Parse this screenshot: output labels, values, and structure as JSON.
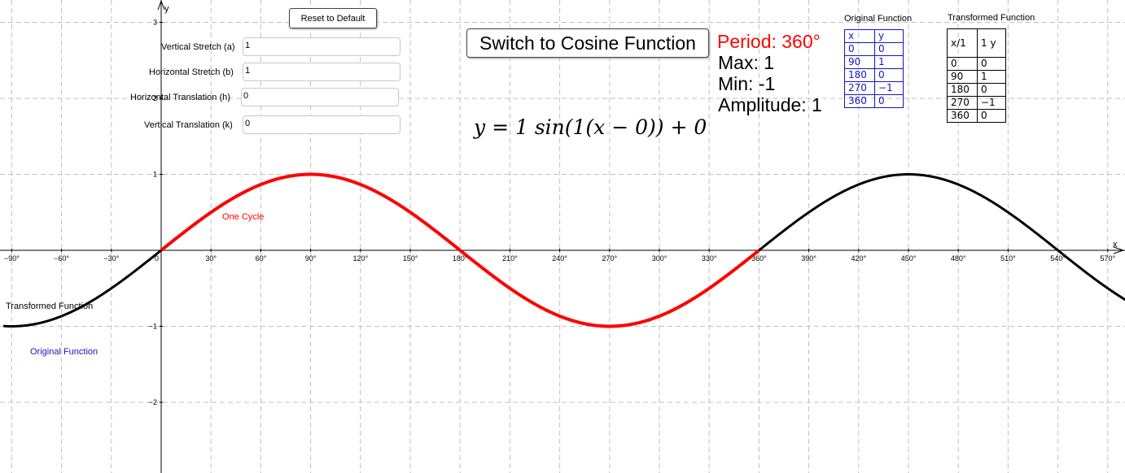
{
  "controls": {
    "reset_label": "Reset to Default",
    "switch_label": "Switch to Cosine Function",
    "sliders": [
      {
        "label": "Vertical Stretch (a)",
        "value": "1"
      },
      {
        "label": "Horizontal Stretch (b)",
        "value": "1"
      },
      {
        "label": "Horizontal Translation (h)",
        "value": "0"
      },
      {
        "label": "Vertical Translation (k)",
        "value": "0"
      }
    ]
  },
  "info": {
    "period": "Period: 360°",
    "max": "Max: 1",
    "min": "Min: -1",
    "amplitude": "Amplitude: 1",
    "equation": "y = 1 sin(1(x − 0)) + 0"
  },
  "tables": {
    "original": {
      "title": "Original Function",
      "headers": [
        "x",
        "y"
      ],
      "rows": [
        [
          "0",
          "0"
        ],
        [
          "90",
          "1"
        ],
        [
          "180",
          "0"
        ],
        [
          "270",
          "−1"
        ],
        [
          "360",
          "0"
        ]
      ]
    },
    "transformed": {
      "title": "Transformed Function",
      "headers": [
        "x/1",
        "1 y"
      ],
      "rows": [
        [
          "0",
          "0"
        ],
        [
          "90",
          "1"
        ],
        [
          "180",
          "0"
        ],
        [
          "270",
          "−1"
        ],
        [
          "360",
          "0"
        ]
      ]
    }
  },
  "labels": {
    "one_cycle": "One Cycle",
    "transformed": "Transformed Function",
    "original": "Original Function"
  },
  "colors": {
    "cycle": "#ff0000",
    "transformed": "#000000",
    "original": "#1515c0",
    "grid": "#c0c0c0"
  },
  "chart_data": {
    "type": "line",
    "xlabel": "x",
    "ylabel": "y",
    "xlim": [
      -95,
      582
    ],
    "ylim": [
      -2.9,
      3.2
    ],
    "x_ticks": [
      -90,
      -60,
      -30,
      0,
      30,
      60,
      90,
      120,
      150,
      180,
      210,
      240,
      270,
      300,
      330,
      360,
      390,
      420,
      450,
      480,
      510,
      540,
      570
    ],
    "x_tick_labels": [
      "−90°",
      "−60°",
      "−30°",
      "0",
      "30°",
      "60°",
      "90°",
      "120°",
      "150°",
      "180°",
      "210°",
      "240°",
      "270°",
      "300°",
      "330°",
      "360°",
      "390°",
      "420°",
      "450°",
      "480°",
      "510°",
      "540°",
      "570°"
    ],
    "y_ticks": [
      -2,
      -1,
      1,
      2,
      3
    ],
    "y_tick_labels": [
      "−2",
      "−1",
      "1",
      "2",
      "3"
    ],
    "grid": true,
    "series": [
      {
        "name": "Transformed Function",
        "function": "y = 1 sin(1(x − 0)) + 0",
        "x_range": [
          -95,
          582
        ],
        "color": "#000000"
      },
      {
        "name": "One Cycle",
        "function": "y = sin(x)",
        "x_range": [
          0,
          360
        ],
        "color": "#ff0000"
      }
    ]
  }
}
